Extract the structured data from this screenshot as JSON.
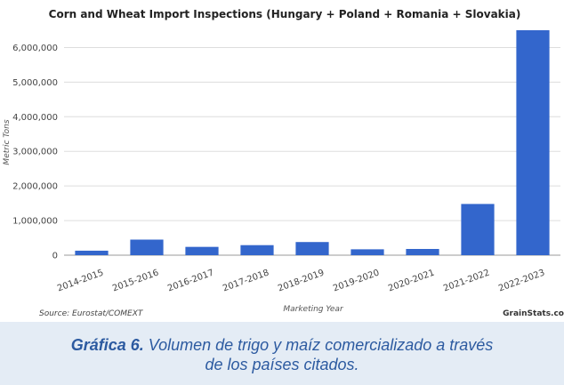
{
  "chart_data": {
    "type": "bar",
    "title": "Corn and Wheat Import Inspections (Hungary + Poland + Romania + Slovakia)",
    "xlabel": "Marketing Year",
    "ylabel": "Metric Tons",
    "categories": [
      "2014-2015",
      "2015-2016",
      "2016-2017",
      "2017-2018",
      "2018-2019",
      "2019-2020",
      "2020-2021",
      "2021-2022",
      "2022-2023"
    ],
    "values": [
      130000,
      450000,
      240000,
      290000,
      380000,
      170000,
      180000,
      1480000,
      6500000
    ],
    "ylim": [
      0,
      6500000
    ],
    "yticks": [
      0,
      1000000,
      2000000,
      3000000,
      4000000,
      5000000,
      6000000
    ],
    "ytick_labels": [
      "0",
      "1,000,000",
      "2,000,000",
      "3,000,000",
      "4,000,000",
      "5,000,000",
      "6,000,000"
    ],
    "grid": true,
    "bar_color": "#3366cc",
    "source": "Source: Eurostat/COMEXT",
    "brand": "GrainStats.co"
  },
  "caption": {
    "label": "Gráfica 6.",
    "text_line1": "Volumen de trigo y maíz comercializado a través",
    "text_line2": "de los países citados."
  },
  "colors": {
    "caption_bg": "#e4ecf5",
    "caption_text": "#2c5aa0"
  }
}
